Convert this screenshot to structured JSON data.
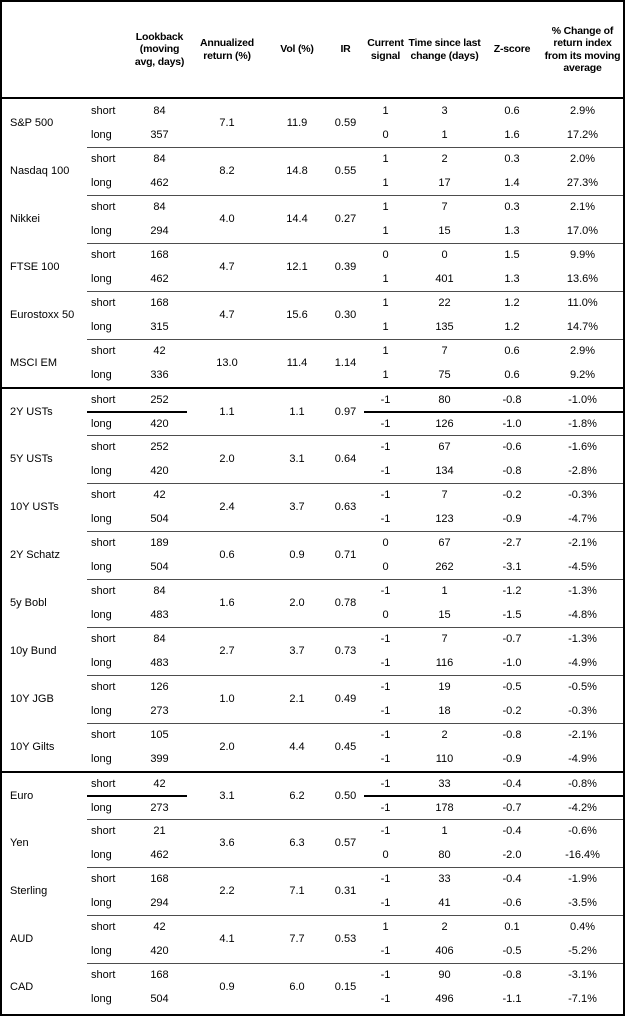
{
  "table": {
    "header": {
      "asset": "",
      "horizon": "",
      "lookback": "Lookback (moving avg, days)",
      "annualized_return": "Annualized return (%)",
      "vol": "Vol (%)",
      "ir": "IR",
      "signal": "Current signal",
      "time_since": "Time since last change (days)",
      "zscore": "Z-score",
      "pct_change": "% Change of return index from its moving average"
    },
    "colors": {
      "border": "#000000",
      "thin_divider": "#4d4d4d",
      "text": "#000000",
      "background": "#ffffff"
    },
    "sections": [
      {
        "groups": [
          {
            "asset": "S&P 500",
            "annualized_return": "7.1",
            "vol": "11.9",
            "ir": "0.59",
            "rows": [
              {
                "horizon": "short",
                "lookback": "84",
                "signal": "1",
                "time_since": "3",
                "zscore": "0.6",
                "pct_change": "2.9%"
              },
              {
                "horizon": "long",
                "lookback": "357",
                "signal": "0",
                "time_since": "1",
                "zscore": "1.6",
                "pct_change": "17.2%"
              }
            ]
          },
          {
            "asset": "Nasdaq 100",
            "annualized_return": "8.2",
            "vol": "14.8",
            "ir": "0.55",
            "rows": [
              {
                "horizon": "short",
                "lookback": "84",
                "signal": "1",
                "time_since": "2",
                "zscore": "0.3",
                "pct_change": "2.0%"
              },
              {
                "horizon": "long",
                "lookback": "462",
                "signal": "1",
                "time_since": "17",
                "zscore": "1.4",
                "pct_change": "27.3%"
              }
            ]
          },
          {
            "asset": "Nikkei",
            "annualized_return": "4.0",
            "vol": "14.4",
            "ir": "0.27",
            "rows": [
              {
                "horizon": "short",
                "lookback": "84",
                "signal": "1",
                "time_since": "7",
                "zscore": "0.3",
                "pct_change": "2.1%"
              },
              {
                "horizon": "long",
                "lookback": "294",
                "signal": "1",
                "time_since": "15",
                "zscore": "1.3",
                "pct_change": "17.0%"
              }
            ]
          },
          {
            "asset": "FTSE 100",
            "annualized_return": "4.7",
            "vol": "12.1",
            "ir": "0.39",
            "rows": [
              {
                "horizon": "short",
                "lookback": "168",
                "signal": "0",
                "time_since": "0",
                "zscore": "1.5",
                "pct_change": "9.9%"
              },
              {
                "horizon": "long",
                "lookback": "462",
                "signal": "1",
                "time_since": "401",
                "zscore": "1.3",
                "pct_change": "13.6%"
              }
            ]
          },
          {
            "asset": "Eurostoxx 50",
            "annualized_return": "4.7",
            "vol": "15.6",
            "ir": "0.30",
            "rows": [
              {
                "horizon": "short",
                "lookback": "168",
                "signal": "1",
                "time_since": "22",
                "zscore": "1.2",
                "pct_change": "11.0%"
              },
              {
                "horizon": "long",
                "lookback": "315",
                "signal": "1",
                "time_since": "135",
                "zscore": "1.2",
                "pct_change": "14.7%"
              }
            ]
          },
          {
            "asset": "MSCI EM",
            "annualized_return": "13.0",
            "vol": "11.4",
            "ir": "1.14",
            "rows": [
              {
                "horizon": "short",
                "lookback": "42",
                "signal": "1",
                "time_since": "7",
                "zscore": "0.6",
                "pct_change": "2.9%"
              },
              {
                "horizon": "long",
                "lookback": "336",
                "signal": "1",
                "time_since": "75",
                "zscore": "0.6",
                "pct_change": "9.2%"
              }
            ]
          }
        ]
      },
      {
        "groups": [
          {
            "asset": "2Y USTs",
            "annualized_return": "1.1",
            "vol": "1.1",
            "ir": "0.97",
            "rows": [
              {
                "horizon": "short",
                "lookback": "252",
                "signal": "-1",
                "time_since": "80",
                "zscore": "-0.8",
                "pct_change": "-1.0%"
              },
              {
                "horizon": "long",
                "lookback": "420",
                "signal": "-1",
                "time_since": "126",
                "zscore": "-1.0",
                "pct_change": "-1.8%"
              }
            ]
          },
          {
            "asset": "5Y USTs",
            "annualized_return": "2.0",
            "vol": "3.1",
            "ir": "0.64",
            "rows": [
              {
                "horizon": "short",
                "lookback": "252",
                "signal": "-1",
                "time_since": "67",
                "zscore": "-0.6",
                "pct_change": "-1.6%"
              },
              {
                "horizon": "long",
                "lookback": "420",
                "signal": "-1",
                "time_since": "134",
                "zscore": "-0.8",
                "pct_change": "-2.8%"
              }
            ]
          },
          {
            "asset": "10Y USTs",
            "annualized_return": "2.4",
            "vol": "3.7",
            "ir": "0.63",
            "rows": [
              {
                "horizon": "short",
                "lookback": "42",
                "signal": "-1",
                "time_since": "7",
                "zscore": "-0.2",
                "pct_change": "-0.3%"
              },
              {
                "horizon": "long",
                "lookback": "504",
                "signal": "-1",
                "time_since": "123",
                "zscore": "-0.9",
                "pct_change": "-4.7%"
              }
            ]
          },
          {
            "asset": "2Y Schatz",
            "annualized_return": "0.6",
            "vol": "0.9",
            "ir": "0.71",
            "rows": [
              {
                "horizon": "short",
                "lookback": "189",
                "signal": "0",
                "time_since": "67",
                "zscore": "-2.7",
                "pct_change": "-2.1%"
              },
              {
                "horizon": "long",
                "lookback": "504",
                "signal": "0",
                "time_since": "262",
                "zscore": "-3.1",
                "pct_change": "-4.5%"
              }
            ]
          },
          {
            "asset": "5y Bobl",
            "annualized_return": "1.6",
            "vol": "2.0",
            "ir": "0.78",
            "rows": [
              {
                "horizon": "short",
                "lookback": "84",
                "signal": "-1",
                "time_since": "1",
                "zscore": "-1.2",
                "pct_change": "-1.3%"
              },
              {
                "horizon": "long",
                "lookback": "483",
                "signal": "0",
                "time_since": "15",
                "zscore": "-1.5",
                "pct_change": "-4.8%"
              }
            ]
          },
          {
            "asset": "10y Bund",
            "annualized_return": "2.7",
            "vol": "3.7",
            "ir": "0.73",
            "rows": [
              {
                "horizon": "short",
                "lookback": "84",
                "signal": "-1",
                "time_since": "7",
                "zscore": "-0.7",
                "pct_change": "-1.3%"
              },
              {
                "horizon": "long",
                "lookback": "483",
                "signal": "-1",
                "time_since": "116",
                "zscore": "-1.0",
                "pct_change": "-4.9%"
              }
            ]
          },
          {
            "asset": "10Y JGB",
            "annualized_return": "1.0",
            "vol": "2.1",
            "ir": "0.49",
            "rows": [
              {
                "horizon": "short",
                "lookback": "126",
                "signal": "-1",
                "time_since": "19",
                "zscore": "-0.5",
                "pct_change": "-0.5%"
              },
              {
                "horizon": "long",
                "lookback": "273",
                "signal": "-1",
                "time_since": "18",
                "zscore": "-0.2",
                "pct_change": "-0.3%"
              }
            ]
          },
          {
            "asset": "10Y Gilts",
            "annualized_return": "2.0",
            "vol": "4.4",
            "ir": "0.45",
            "rows": [
              {
                "horizon": "short",
                "lookback": "105",
                "signal": "-1",
                "time_since": "2",
                "zscore": "-0.8",
                "pct_change": "-2.1%"
              },
              {
                "horizon": "long",
                "lookback": "399",
                "signal": "-1",
                "time_since": "110",
                "zscore": "-0.9",
                "pct_change": "-4.9%"
              }
            ]
          }
        ]
      },
      {
        "groups": [
          {
            "asset": "Euro",
            "annualized_return": "3.1",
            "vol": "6.2",
            "ir": "0.50",
            "rows": [
              {
                "horizon": "short",
                "lookback": "42",
                "signal": "-1",
                "time_since": "33",
                "zscore": "-0.4",
                "pct_change": "-0.8%"
              },
              {
                "horizon": "long",
                "lookback": "273",
                "signal": "-1",
                "time_since": "178",
                "zscore": "-0.7",
                "pct_change": "-4.2%"
              }
            ]
          },
          {
            "asset": "Yen",
            "annualized_return": "3.6",
            "vol": "6.3",
            "ir": "0.57",
            "rows": [
              {
                "horizon": "short",
                "lookback": "21",
                "signal": "-1",
                "time_since": "1",
                "zscore": "-0.4",
                "pct_change": "-0.6%"
              },
              {
                "horizon": "long",
                "lookback": "462",
                "signal": "0",
                "time_since": "80",
                "zscore": "-2.0",
                "pct_change": "-16.4%"
              }
            ]
          },
          {
            "asset": "Sterling",
            "annualized_return": "2.2",
            "vol": "7.1",
            "ir": "0.31",
            "rows": [
              {
                "horizon": "short",
                "lookback": "168",
                "signal": "-1",
                "time_since": "33",
                "zscore": "-0.4",
                "pct_change": "-1.9%"
              },
              {
                "horizon": "long",
                "lookback": "294",
                "signal": "-1",
                "time_since": "41",
                "zscore": "-0.6",
                "pct_change": "-3.5%"
              }
            ]
          },
          {
            "asset": "AUD",
            "annualized_return": "4.1",
            "vol": "7.7",
            "ir": "0.53",
            "rows": [
              {
                "horizon": "short",
                "lookback": "42",
                "signal": "1",
                "time_since": "2",
                "zscore": "0.1",
                "pct_change": "0.4%"
              },
              {
                "horizon": "long",
                "lookback": "420",
                "signal": "-1",
                "time_since": "406",
                "zscore": "-0.5",
                "pct_change": "-5.2%"
              }
            ]
          },
          {
            "asset": "CAD",
            "annualized_return": "0.9",
            "vol": "6.0",
            "ir": "0.15",
            "rows": [
              {
                "horizon": "short",
                "lookback": "168",
                "signal": "-1",
                "time_since": "90",
                "zscore": "-0.8",
                "pct_change": "-3.1%"
              },
              {
                "horizon": "long",
                "lookback": "504",
                "signal": "-1",
                "time_since": "496",
                "zscore": "-1.1",
                "pct_change": "-7.1%"
              }
            ]
          }
        ]
      }
    ]
  }
}
